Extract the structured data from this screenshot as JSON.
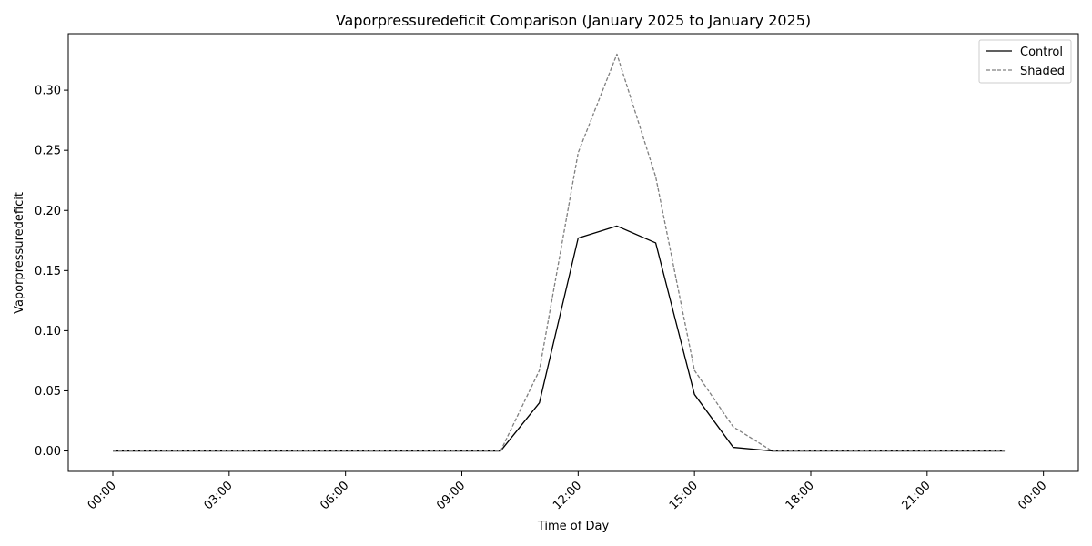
{
  "chart_data": {
    "type": "line",
    "title": "Vaporpressuredeficit Comparison (January 2025 to January 2025)",
    "xlabel": "Time of Day",
    "ylabel": "Vaporpressuredeficit",
    "x": [
      "00:00",
      "01:00",
      "02:00",
      "03:00",
      "04:00",
      "05:00",
      "06:00",
      "07:00",
      "08:00",
      "09:00",
      "10:00",
      "11:00",
      "12:00",
      "13:00",
      "14:00",
      "15:00",
      "16:00",
      "17:00",
      "18:00",
      "19:00",
      "20:00",
      "21:00",
      "22:00",
      "23:00"
    ],
    "xlim": [
      "-01:09",
      "24:54"
    ],
    "xticks": [
      "00:00",
      "03:00",
      "06:00",
      "09:00",
      "12:00",
      "15:00",
      "18:00",
      "21:00",
      "00:00"
    ],
    "ylim": [
      -0.017,
      0.347
    ],
    "yticks": [
      "0.00",
      "0.05",
      "0.10",
      "0.15",
      "0.20",
      "0.25",
      "0.30"
    ],
    "grid": false,
    "legend_position": "top-right",
    "series": [
      {
        "name": "Control",
        "color": "#000000",
        "style": "solid",
        "values": [
          0,
          0,
          0,
          0,
          0,
          0,
          0,
          0,
          0,
          0,
          0,
          0.04,
          0.177,
          0.187,
          0.173,
          0.047,
          0.003,
          0,
          0,
          0,
          0,
          0,
          0,
          0
        ]
      },
      {
        "name": "Shaded",
        "color": "#808080",
        "style": "dashed",
        "values": [
          0,
          0,
          0,
          0,
          0,
          0,
          0,
          0,
          0,
          0,
          0,
          0.067,
          0.248,
          0.33,
          0.228,
          0.067,
          0.02,
          0,
          0,
          0,
          0,
          0,
          0,
          0
        ]
      }
    ]
  }
}
